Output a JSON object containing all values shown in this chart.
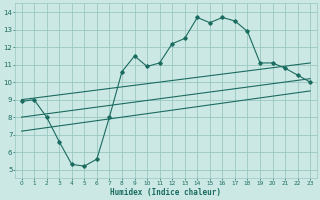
{
  "xlabel": "Humidex (Indice chaleur)",
  "bg_color": "#cce8e4",
  "grid_color": "#9ac8c2",
  "line_color": "#1a6b60",
  "x_ticks": [
    0,
    1,
    2,
    3,
    4,
    5,
    6,
    7,
    8,
    9,
    10,
    11,
    12,
    13,
    14,
    15,
    16,
    17,
    18,
    19,
    20,
    21,
    22,
    23
  ],
  "y_ticks": [
    5,
    6,
    7,
    8,
    9,
    10,
    11,
    12,
    13,
    14
  ],
  "xlim": [
    -0.5,
    23.5
  ],
  "ylim": [
    4.5,
    14.5
  ],
  "main_series_x": [
    0,
    1,
    2,
    3,
    4,
    5,
    6,
    7,
    8,
    9,
    10,
    11,
    12,
    13,
    14,
    15,
    16,
    17,
    18,
    19,
    20,
    21,
    22,
    23
  ],
  "main_series_y": [
    8.9,
    9.0,
    8.0,
    6.6,
    5.3,
    5.2,
    5.6,
    8.0,
    10.6,
    11.5,
    10.9,
    11.1,
    12.2,
    12.5,
    13.7,
    13.4,
    13.7,
    13.5,
    12.9,
    11.1,
    11.1,
    10.8,
    10.4,
    10.0
  ],
  "upper_line_x": [
    0,
    23
  ],
  "upper_line_y": [
    9.0,
    11.1
  ],
  "middle_line_x": [
    0,
    23
  ],
  "middle_line_y": [
    8.0,
    10.2
  ],
  "lower_line_x": [
    0,
    23
  ],
  "lower_line_y": [
    7.2,
    9.5
  ]
}
